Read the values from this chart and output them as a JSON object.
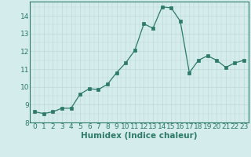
{
  "x": [
    0,
    1,
    2,
    3,
    4,
    5,
    6,
    7,
    8,
    9,
    10,
    11,
    12,
    13,
    14,
    15,
    16,
    17,
    18,
    19,
    20,
    21,
    22,
    23
  ],
  "y": [
    8.6,
    8.5,
    8.6,
    8.8,
    8.8,
    9.6,
    9.9,
    9.85,
    10.15,
    10.8,
    11.35,
    12.05,
    13.55,
    13.3,
    14.5,
    14.45,
    13.7,
    10.8,
    11.5,
    11.75,
    11.5,
    11.1,
    11.35,
    11.5
  ],
  "xlabel": "Humidex (Indice chaleur)",
  "ylim": [
    8,
    14.8
  ],
  "xlim": [
    -0.5,
    23.5
  ],
  "yticks": [
    8,
    9,
    10,
    11,
    12,
    13,
    14
  ],
  "xticks": [
    0,
    1,
    2,
    3,
    4,
    5,
    6,
    7,
    8,
    9,
    10,
    11,
    12,
    13,
    14,
    15,
    16,
    17,
    18,
    19,
    20,
    21,
    22,
    23
  ],
  "line_color": "#2d7a6a",
  "marker_color": "#2d7a6a",
  "bg_color": "#d4edec",
  "grid_color": "#bdd8d5",
  "tick_label_fontsize": 6.5,
  "xlabel_fontsize": 7.5
}
